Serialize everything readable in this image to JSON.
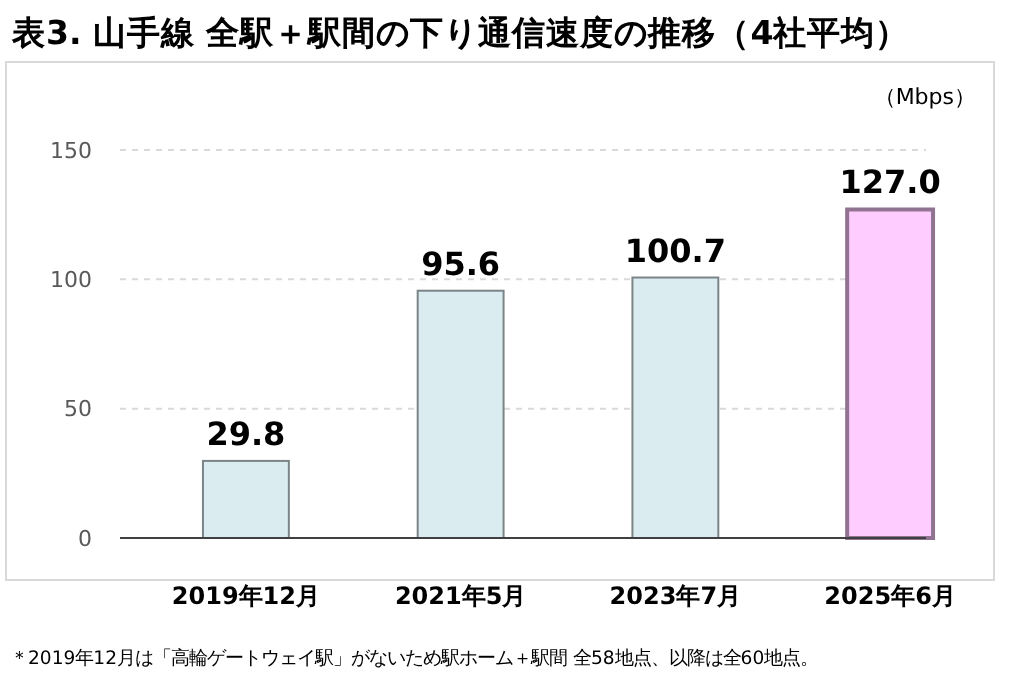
{
  "chart_data": {
    "type": "bar",
    "title": "表3. 山手線 全駅＋駅間の下り通信速度の推移（4社平均）",
    "ylabel": "（Mbps）",
    "categories": [
      "2019年12月",
      "2021年5月",
      "2023年7月",
      "2025年6月"
    ],
    "values": [
      29.8,
      95.6,
      100.7,
      127.0
    ],
    "value_labels": [
      "29.8",
      "95.6",
      "100.7",
      "127.0"
    ],
    "colors": [
      "#daecf0",
      "#daecf0",
      "#daecf0",
      "#ffccff"
    ],
    "ylim": [
      0,
      150
    ],
    "yticks": [
      0,
      50,
      100,
      150
    ],
    "grid": "y",
    "annotations": [
      "＊2019年12月は「高輪ゲートウェイ駅」がないため駅ホーム＋駅間 全58地点、以降は全60地点。"
    ]
  }
}
